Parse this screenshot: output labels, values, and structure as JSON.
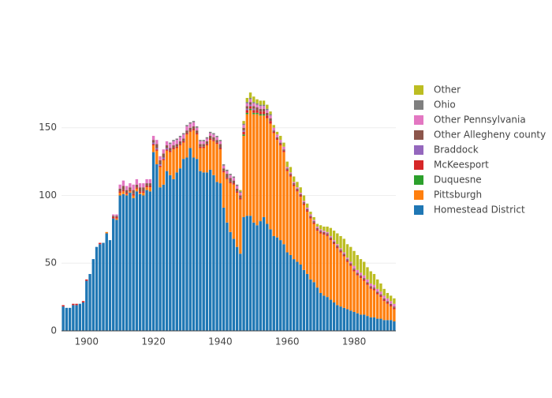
{
  "chart_data": {
    "type": "stacked_bar",
    "x": [
      1893,
      1894,
      1895,
      1896,
      1897,
      1898,
      1899,
      1900,
      1901,
      1902,
      1903,
      1904,
      1905,
      1906,
      1907,
      1908,
      1909,
      1910,
      1911,
      1912,
      1913,
      1914,
      1915,
      1916,
      1917,
      1918,
      1919,
      1920,
      1921,
      1922,
      1923,
      1924,
      1925,
      1926,
      1927,
      1928,
      1929,
      1930,
      1931,
      1932,
      1933,
      1934,
      1935,
      1936,
      1937,
      1938,
      1939,
      1940,
      1941,
      1942,
      1943,
      1944,
      1945,
      1946,
      1947,
      1948,
      1949,
      1950,
      1951,
      1952,
      1953,
      1954,
      1955,
      1956,
      1957,
      1958,
      1959,
      1960,
      1961,
      1962,
      1963,
      1964,
      1965,
      1966,
      1967,
      1968,
      1969,
      1970,
      1971,
      1972,
      1973,
      1974,
      1975,
      1976,
      1977,
      1978,
      1979,
      1980,
      1981,
      1982,
      1983,
      1984,
      1985,
      1986,
      1987,
      1988,
      1989,
      1990,
      1991,
      1992
    ],
    "xlim": [
      1892.5,
      1992.5
    ],
    "xticks": [
      1900,
      1920,
      1940,
      1960,
      1980
    ],
    "ylim": [
      0,
      186
    ],
    "yticks": [
      0,
      50,
      100,
      150
    ],
    "grid": true,
    "series": [
      {
        "name": "Homestead District",
        "color": "#1f77b4",
        "values": [
          18,
          17,
          17,
          19,
          19,
          20,
          21,
          37,
          42,
          53,
          62,
          64,
          65,
          72,
          67,
          83,
          82,
          100,
          101,
          100,
          102,
          98,
          103,
          101,
          100,
          104,
          103,
          132,
          123,
          106,
          108,
          118,
          115,
          112,
          117,
          120,
          127,
          128,
          135,
          128,
          127,
          118,
          117,
          117,
          119,
          115,
          110,
          109,
          91,
          80,
          73,
          68,
          62,
          57,
          84,
          85,
          85,
          80,
          78,
          81,
          84,
          79,
          75,
          70,
          69,
          67,
          64,
          58,
          56,
          53,
          51,
          49,
          45,
          42,
          38,
          36,
          32,
          28,
          26,
          25,
          23,
          21,
          19,
          18,
          17,
          16,
          15,
          14,
          13,
          12,
          12,
          11,
          10,
          10,
          9,
          9,
          8,
          8,
          8,
          7
        ]
      },
      {
        "name": "Pittsburgh",
        "color": "#ff7f0e",
        "values": [
          0,
          0,
          0,
          0,
          0,
          0,
          0,
          0,
          0,
          0,
          0,
          0,
          0,
          1,
          0,
          0,
          1,
          2,
          2,
          1,
          1,
          2,
          2,
          1,
          2,
          2,
          3,
          5,
          10,
          15,
          18,
          15,
          17,
          22,
          18,
          17,
          12,
          17,
          12,
          20,
          18,
          17,
          18,
          20,
          22,
          25,
          28,
          25,
          26,
          32,
          36,
          40,
          40,
          40,
          60,
          75,
          78,
          80,
          82,
          78,
          75,
          78,
          78,
          76,
          72,
          70,
          68,
          60,
          58,
          54,
          52,
          50,
          48,
          46,
          45,
          43,
          42,
          44,
          45,
          45,
          44,
          43,
          42,
          40,
          38,
          35,
          33,
          30,
          28,
          27,
          25,
          23,
          21,
          20,
          18,
          16,
          14,
          12,
          10,
          9
        ]
      },
      {
        "name": "Duquesne",
        "color": "#2ca02c",
        "values": [
          0,
          0,
          0,
          0,
          0,
          0,
          0,
          0,
          0,
          0,
          0,
          0,
          0,
          0,
          0,
          0,
          0,
          0,
          0,
          0,
          0,
          0,
          0,
          0,
          0,
          0,
          0,
          0,
          0,
          0,
          0,
          0,
          0,
          0,
          0,
          0,
          0,
          0,
          0,
          0,
          0,
          0,
          0,
          0,
          0,
          0,
          0,
          0,
          0,
          0,
          0,
          0,
          0,
          0,
          1,
          1,
          1,
          1,
          1,
          1,
          1,
          0,
          0,
          0,
          0,
          0,
          0,
          0,
          0,
          0,
          0,
          0,
          0,
          0,
          0,
          0,
          0,
          0,
          0,
          0,
          0,
          0,
          0,
          0,
          0,
          0,
          0,
          0,
          0,
          0,
          0,
          0,
          0,
          0,
          0,
          0,
          0,
          0,
          0,
          0
        ]
      },
      {
        "name": "McKeesport",
        "color": "#d62728",
        "values": [
          1,
          0,
          0,
          1,
          1,
          0,
          1,
          1,
          0,
          0,
          0,
          1,
          0,
          0,
          0,
          1,
          1,
          1,
          1,
          1,
          1,
          1,
          1,
          1,
          1,
          1,
          1,
          1,
          1,
          1,
          1,
          1,
          1,
          1,
          1,
          1,
          1,
          1,
          1,
          1,
          1,
          1,
          1,
          1,
          1,
          1,
          1,
          1,
          1,
          1,
          1,
          1,
          1,
          1,
          2,
          2,
          2,
          2,
          2,
          2,
          2,
          2,
          2,
          1,
          1,
          1,
          1,
          1,
          1,
          1,
          1,
          1,
          1,
          1,
          1,
          1,
          1,
          1,
          1,
          1,
          1,
          1,
          1,
          1,
          1,
          1,
          1,
          1,
          1,
          1,
          1,
          1,
          1,
          1,
          1,
          1,
          1,
          1,
          1,
          1
        ]
      },
      {
        "name": "Braddock",
        "color": "#9467bd",
        "values": [
          0,
          0,
          0,
          0,
          0,
          0,
          0,
          0,
          0,
          0,
          0,
          0,
          0,
          0,
          0,
          0,
          0,
          0,
          0,
          0,
          0,
          0,
          0,
          0,
          0,
          0,
          0,
          1,
          1,
          1,
          1,
          1,
          0,
          0,
          0,
          0,
          0,
          0,
          0,
          0,
          0,
          0,
          0,
          0,
          0,
          0,
          0,
          0,
          0,
          0,
          0,
          0,
          0,
          0,
          1,
          1,
          1,
          1,
          0,
          0,
          0,
          0,
          0,
          0,
          0,
          0,
          0,
          0,
          0,
          0,
          0,
          0,
          0,
          0,
          0,
          0,
          0,
          0,
          0,
          0,
          0,
          0,
          0,
          0,
          0,
          0,
          0,
          0,
          0,
          0,
          0,
          0,
          0,
          0,
          0,
          0,
          0,
          0,
          0,
          0
        ]
      },
      {
        "name": "Other Allegheny county",
        "color": "#8c564b",
        "values": [
          0,
          0,
          0,
          0,
          0,
          0,
          0,
          0,
          0,
          0,
          0,
          0,
          0,
          0,
          0,
          1,
          1,
          2,
          3,
          2,
          2,
          3,
          2,
          3,
          3,
          2,
          2,
          2,
          3,
          3,
          3,
          2,
          2,
          2,
          2,
          2,
          2,
          2,
          2,
          2,
          2,
          2,
          2,
          2,
          2,
          2,
          2,
          3,
          2,
          3,
          3,
          2,
          2,
          2,
          2,
          2,
          2,
          2,
          2,
          2,
          2,
          2,
          2,
          1,
          1,
          1,
          1,
          1,
          1,
          1,
          1,
          1,
          1,
          1,
          1,
          1,
          1,
          1,
          1,
          1,
          1,
          1,
          1,
          1,
          1,
          1,
          1,
          1,
          1,
          1,
          1,
          1,
          1,
          1,
          1,
          1,
          1,
          1,
          1,
          1
        ]
      },
      {
        "name": "Other Pennsylvania",
        "color": "#e377c2",
        "values": [
          0,
          0,
          0,
          0,
          0,
          0,
          0,
          0,
          0,
          0,
          0,
          0,
          0,
          0,
          0,
          1,
          1,
          3,
          4,
          3,
          3,
          4,
          4,
          3,
          3,
          3,
          3,
          3,
          3,
          3,
          3,
          3,
          3,
          3,
          3,
          3,
          3,
          3,
          3,
          3,
          2,
          2,
          2,
          2,
          2,
          2,
          2,
          2,
          2,
          2,
          2,
          2,
          2,
          2,
          2,
          2,
          2,
          2,
          2,
          2,
          2,
          2,
          2,
          2,
          2,
          2,
          2,
          1,
          1,
          1,
          1,
          1,
          1,
          1,
          1,
          1,
          1,
          1,
          1,
          1,
          1,
          1,
          1,
          1,
          1,
          1,
          1,
          2,
          2,
          2,
          2,
          2,
          2,
          2,
          2,
          2,
          2,
          2,
          2,
          2
        ]
      },
      {
        "name": "Ohio",
        "color": "#7f7f7f",
        "values": [
          0,
          0,
          0,
          0,
          0,
          0,
          0,
          0,
          0,
          0,
          0,
          0,
          0,
          0,
          0,
          0,
          0,
          0,
          0,
          0,
          0,
          0,
          0,
          0,
          0,
          0,
          0,
          0,
          0,
          0,
          0,
          0,
          1,
          1,
          1,
          1,
          1,
          1,
          1,
          1,
          1,
          1,
          1,
          1,
          1,
          1,
          1,
          1,
          1,
          1,
          1,
          1,
          1,
          1,
          1,
          1,
          1,
          1,
          1,
          1,
          1,
          1,
          1,
          0,
          0,
          0,
          0,
          0,
          0,
          0,
          0,
          0,
          0,
          0,
          0,
          0,
          0,
          0,
          0,
          0,
          0,
          0,
          0,
          0,
          0,
          0,
          0,
          0,
          0,
          0,
          0,
          0,
          0,
          0,
          0,
          0,
          0,
          0,
          0,
          0
        ]
      },
      {
        "name": "Other",
        "color": "#bcbd22",
        "values": [
          0,
          0,
          0,
          0,
          0,
          0,
          0,
          0,
          0,
          0,
          0,
          0,
          0,
          0,
          0,
          0,
          0,
          0,
          0,
          0,
          0,
          0,
          0,
          0,
          0,
          0,
          0,
          0,
          0,
          0,
          0,
          0,
          0,
          0,
          0,
          0,
          0,
          0,
          0,
          0,
          0,
          0,
          0,
          0,
          0,
          0,
          0,
          0,
          0,
          0,
          0,
          0,
          0,
          1,
          2,
          3,
          4,
          4,
          3,
          3,
          3,
          3,
          2,
          2,
          2,
          3,
          3,
          4,
          4,
          4,
          4,
          4,
          4,
          3,
          2,
          2,
          2,
          3,
          3,
          4,
          6,
          7,
          8,
          9,
          10,
          10,
          11,
          11,
          11,
          10,
          10,
          9,
          9,
          8,
          7,
          6,
          5,
          4,
          4,
          4
        ]
      }
    ]
  }
}
